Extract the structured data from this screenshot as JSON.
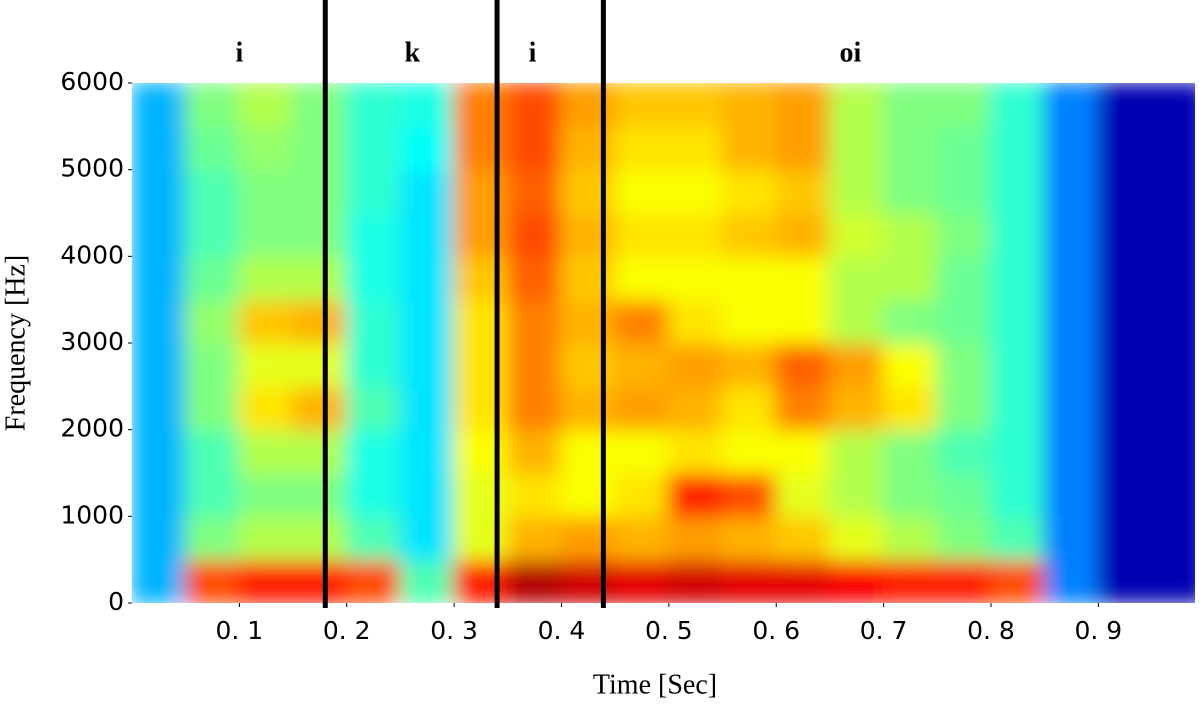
{
  "chart_data": {
    "type": "heatmap",
    "xlabel": "Time [Sec]",
    "ylabel": "Frequency [Hz]",
    "x_edges": [
      0,
      0.05,
      0.1,
      0.15,
      0.2,
      0.25,
      0.3,
      0.35,
      0.4,
      0.45,
      0.5,
      0.55,
      0.6,
      0.65,
      0.7,
      0.75,
      0.8,
      0.85,
      0.9,
      0.95,
      1.0
    ],
    "y_edges": [
      0,
      500,
      1000,
      1500,
      2000,
      2500,
      3000,
      3500,
      4000,
      4500,
      5000,
      5500,
      6000
    ],
    "z": [
      [
        0.3,
        0.8,
        0.85,
        0.85,
        0.8,
        0.45,
        0.85,
        0.95,
        0.92,
        0.9,
        0.92,
        0.9,
        0.9,
        0.88,
        0.85,
        0.85,
        0.8,
        0.25,
        0.05,
        0.05
      ],
      [
        0.3,
        0.5,
        0.55,
        0.55,
        0.45,
        0.35,
        0.6,
        0.7,
        0.72,
        0.7,
        0.72,
        0.7,
        0.68,
        0.6,
        0.55,
        0.5,
        0.45,
        0.25,
        0.05,
        0.05
      ],
      [
        0.3,
        0.45,
        0.5,
        0.5,
        0.4,
        0.35,
        0.6,
        0.65,
        0.62,
        0.65,
        0.85,
        0.8,
        0.6,
        0.55,
        0.5,
        0.48,
        0.42,
        0.25,
        0.05,
        0.05
      ],
      [
        0.3,
        0.45,
        0.55,
        0.55,
        0.4,
        0.35,
        0.62,
        0.7,
        0.62,
        0.62,
        0.65,
        0.62,
        0.62,
        0.55,
        0.5,
        0.45,
        0.42,
        0.25,
        0.05,
        0.05
      ],
      [
        0.3,
        0.5,
        0.65,
        0.7,
        0.45,
        0.35,
        0.65,
        0.75,
        0.7,
        0.72,
        0.7,
        0.65,
        0.75,
        0.7,
        0.65,
        0.5,
        0.42,
        0.25,
        0.05,
        0.05
      ],
      [
        0.3,
        0.5,
        0.6,
        0.6,
        0.42,
        0.35,
        0.65,
        0.75,
        0.68,
        0.7,
        0.72,
        0.7,
        0.78,
        0.72,
        0.62,
        0.5,
        0.42,
        0.25,
        0.05,
        0.05
      ],
      [
        0.3,
        0.52,
        0.68,
        0.7,
        0.42,
        0.35,
        0.65,
        0.75,
        0.7,
        0.75,
        0.65,
        0.62,
        0.62,
        0.55,
        0.5,
        0.48,
        0.42,
        0.25,
        0.05,
        0.05
      ],
      [
        0.3,
        0.48,
        0.55,
        0.55,
        0.4,
        0.35,
        0.68,
        0.78,
        0.68,
        0.62,
        0.62,
        0.62,
        0.62,
        0.55,
        0.55,
        0.48,
        0.42,
        0.25,
        0.05,
        0.05
      ],
      [
        0.3,
        0.45,
        0.5,
        0.5,
        0.4,
        0.35,
        0.72,
        0.8,
        0.7,
        0.65,
        0.65,
        0.68,
        0.7,
        0.58,
        0.55,
        0.5,
        0.42,
        0.25,
        0.05,
        0.05
      ],
      [
        0.3,
        0.45,
        0.5,
        0.5,
        0.42,
        0.35,
        0.72,
        0.78,
        0.68,
        0.62,
        0.62,
        0.65,
        0.68,
        0.55,
        0.5,
        0.48,
        0.42,
        0.25,
        0.05,
        0.05
      ],
      [
        0.3,
        0.48,
        0.52,
        0.5,
        0.42,
        0.38,
        0.75,
        0.8,
        0.7,
        0.65,
        0.65,
        0.7,
        0.72,
        0.55,
        0.5,
        0.48,
        0.42,
        0.25,
        0.05,
        0.05
      ],
      [
        0.3,
        0.5,
        0.55,
        0.5,
        0.42,
        0.4,
        0.75,
        0.8,
        0.72,
        0.68,
        0.68,
        0.7,
        0.72,
        0.55,
        0.5,
        0.5,
        0.42,
        0.25,
        0.05,
        0.05
      ]
    ],
    "colormap": "jet",
    "xlim": [
      0,
      0.99
    ],
    "ylim": [
      0,
      6000
    ],
    "xticks": [
      {
        "value": 0.1,
        "label": "0. 1"
      },
      {
        "value": 0.2,
        "label": "0. 2"
      },
      {
        "value": 0.3,
        "label": "0. 3"
      },
      {
        "value": 0.4,
        "label": "0. 4"
      },
      {
        "value": 0.5,
        "label": "0. 5"
      },
      {
        "value": 0.6,
        "label": "0. 6"
      },
      {
        "value": 0.7,
        "label": "0. 7"
      },
      {
        "value": 0.8,
        "label": "0. 8"
      },
      {
        "value": 0.9,
        "label": "0. 9"
      }
    ],
    "yticks": [
      0,
      1000,
      2000,
      3000,
      4000,
      5000,
      6000
    ],
    "boundaries": [
      0.18,
      0.34,
      0.439
    ],
    "annotations": [
      {
        "text": "i",
        "x": 0.1
      },
      {
        "text": "k",
        "x": 0.261
      },
      {
        "text": "i",
        "x": 0.373
      },
      {
        "text": "oi",
        "x": 0.669
      }
    ]
  }
}
